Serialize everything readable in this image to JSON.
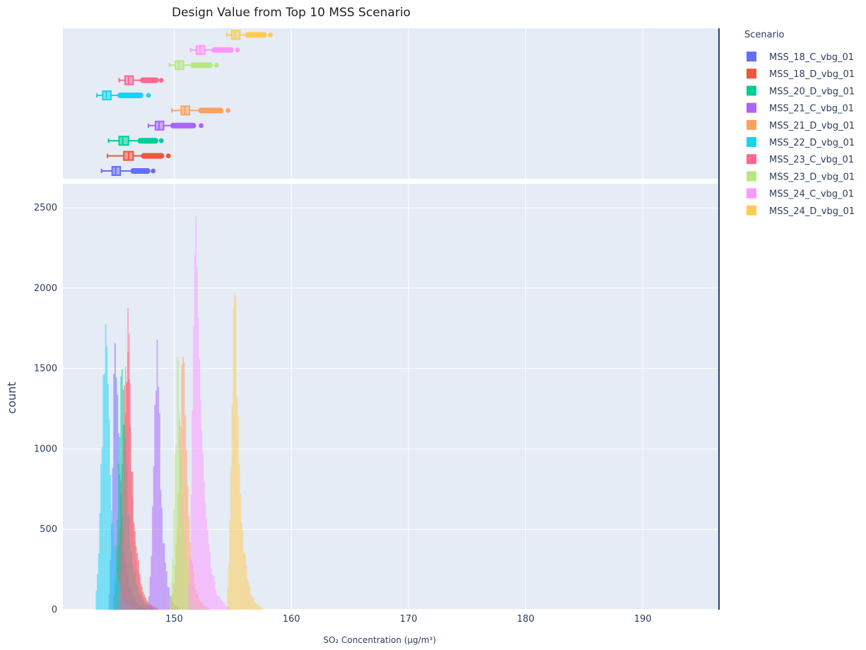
{
  "chart_data": {
    "type": "histogram",
    "title": "Design Value from Top 10 MSS Scenario",
    "xlabel": "SO₂ Concentration (µg/m³)",
    "ylabel": "count",
    "xlim": [
      140.5,
      196.5
    ],
    "ylim": [
      0,
      2650
    ],
    "x_ticks": [
      150,
      160,
      170,
      180,
      190
    ],
    "y_ticks": [
      0,
      500,
      1000,
      1500,
      2000,
      2500
    ],
    "grid": true,
    "marginal": "box",
    "bin_width": 0.1,
    "legend": {
      "title": "Scenario",
      "position": "right"
    },
    "series": [
      {
        "name": "MSS_18_C_vbg_01",
        "color": "#636efa",
        "hist": {
          "range": [
            144.4,
            147.6
          ],
          "mode": 145.0,
          "peak": 1750
        },
        "box": {
          "min": 143.8,
          "q1": 144.7,
          "median": 145.0,
          "q3": 145.4,
          "upper_fence": 146.5,
          "max": 148.2
        }
      },
      {
        "name": "MSS_18_D_vbg_01",
        "color": "#EF553B",
        "hist": {
          "range": [
            144.8,
            148.6
          ],
          "mode": 146.1,
          "peak": 1650
        },
        "box": {
          "min": 144.3,
          "q1": 145.7,
          "median": 146.1,
          "q3": 146.5,
          "upper_fence": 147.4,
          "max": 149.5
        }
      },
      {
        "name": "MSS_20_D_vbg_01",
        "color": "#00cc96",
        "hist": {
          "range": [
            144.8,
            148.3
          ],
          "mode": 145.6,
          "peak": 1650
        },
        "box": {
          "min": 144.4,
          "q1": 145.3,
          "median": 145.6,
          "q3": 146.1,
          "upper_fence": 147.1,
          "max": 148.9
        }
      },
      {
        "name": "MSS_21_C_vbg_01",
        "color": "#ab63fa",
        "hist": {
          "range": [
            147.8,
            150.5
          ],
          "mode": 148.6,
          "peak": 1720
        },
        "box": {
          "min": 147.8,
          "q1": 148.4,
          "median": 148.7,
          "q3": 149.1,
          "upper_fence": 149.9,
          "max": 152.3
        }
      },
      {
        "name": "MSS_21_D_vbg_01",
        "color": "#FFA15A",
        "hist": {
          "range": [
            149.8,
            153.0
          ],
          "mode": 150.8,
          "peak": 1620
        },
        "box": {
          "min": 149.8,
          "q1": 150.6,
          "median": 150.9,
          "q3": 151.3,
          "upper_fence": 152.3,
          "max": 154.6
        }
      },
      {
        "name": "MSS_22_D_vbg_01",
        "color": "#19d3f3",
        "hist": {
          "range": [
            143.3,
            146.6
          ],
          "mode": 144.2,
          "peak": 1870
        },
        "box": {
          "min": 143.4,
          "q1": 143.9,
          "median": 144.2,
          "q3": 144.6,
          "upper_fence": 145.4,
          "max": 147.8
        }
      },
      {
        "name": "MSS_23_C_vbg_01",
        "color": "#FF6692",
        "hist": {
          "range": [
            145.3,
            148.2
          ],
          "mode": 146.1,
          "peak": 1900
        },
        "box": {
          "min": 145.3,
          "q1": 145.8,
          "median": 146.1,
          "q3": 146.5,
          "upper_fence": 147.3,
          "max": 148.9
        }
      },
      {
        "name": "MSS_23_D_vbg_01",
        "color": "#B6E880",
        "hist": {
          "range": [
            149.6,
            152.4
          ],
          "mode": 150.4,
          "peak": 1630
        },
        "box": {
          "min": 149.6,
          "q1": 150.1,
          "median": 150.4,
          "q3": 150.8,
          "upper_fence": 151.6,
          "max": 153.6
        }
      },
      {
        "name": "MSS_24_C_vbg_01",
        "color": "#FF97FF",
        "hist": {
          "range": [
            151.2,
            154.8
          ],
          "mode": 151.9,
          "peak": 2540
        },
        "box": {
          "min": 151.4,
          "q1": 151.9,
          "median": 152.2,
          "q3": 152.6,
          "upper_fence": 153.4,
          "max": 155.4
        }
      },
      {
        "name": "MSS_24_D_vbg_01",
        "color": "#FECB52",
        "hist": {
          "range": [
            154.5,
            157.6
          ],
          "mode": 155.2,
          "peak": 2040
        },
        "box": {
          "min": 154.5,
          "q1": 154.9,
          "median": 155.2,
          "q3": 155.6,
          "upper_fence": 156.3,
          "max": 158.2
        }
      }
    ]
  }
}
